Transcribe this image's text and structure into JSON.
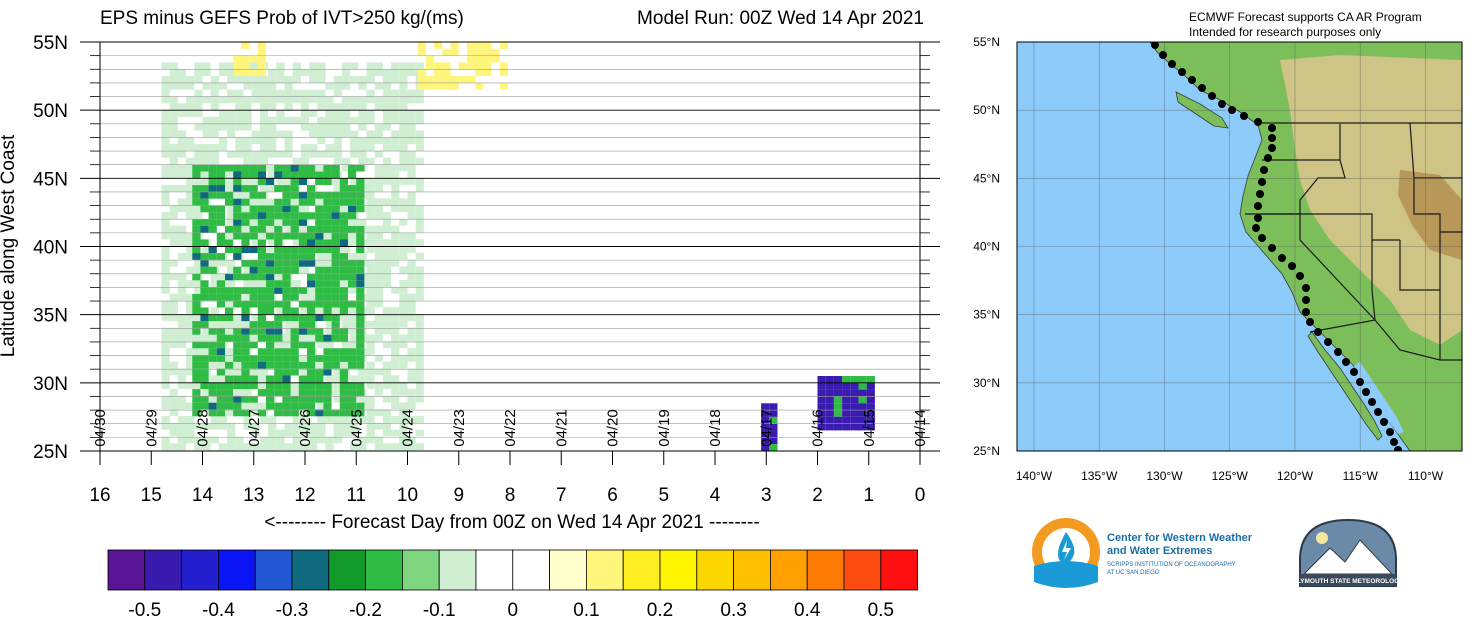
{
  "header": {
    "title": "EPS minus GEFS Prob of IVT>250 kg/(ms)",
    "model_run": "Model Run: 00Z Wed 14 Apr 2021"
  },
  "chart_data": {
    "type": "heatmap",
    "title": "EPS minus GEFS Prob of IVT>250 kg/(ms)",
    "xlabel": "<-------- Forecast Day from 00Z on Wed 14 Apr 2021 --------",
    "ylabel": "Latitude along West Coast",
    "x_axis_reversed": true,
    "xlim": [
      0,
      16
    ],
    "ylim": [
      25,
      55
    ],
    "x_ticks": [
      "16",
      "15",
      "14",
      "13",
      "12",
      "11",
      "10",
      "9",
      "8",
      "7",
      "6",
      "5",
      "4",
      "3",
      "2",
      "1",
      "0"
    ],
    "y_ticks": [
      "25N",
      "30N",
      "35N",
      "40N",
      "45N",
      "50N",
      "55N"
    ],
    "date_labels": [
      "04/30",
      "04/29",
      "04/28",
      "04/27",
      "04/26",
      "04/25",
      "04/24",
      "04/23",
      "04/22",
      "04/21",
      "04/20",
      "04/19",
      "04/18",
      "04/17",
      "04/16",
      "04/15",
      "04/14"
    ],
    "grid": true,
    "regions": [
      {
        "x_from": 9.8,
        "x_to": 14.8,
        "lat_from": 25,
        "lat_to": 53.5,
        "value": -0.1
      },
      {
        "x_from": 11.0,
        "x_to": 14.2,
        "lat_from": 28,
        "lat_to": 46,
        "value": -0.2
      },
      {
        "x_from": 1.0,
        "x_to": 2.0,
        "lat_from": 27,
        "lat_to": 30.5,
        "value": -0.5
      },
      {
        "x_from": 2.8,
        "x_to": 3.1,
        "lat_from": 25,
        "lat_to": 28.5,
        "value": -0.5
      },
      {
        "x_from": 8.2,
        "x_to": 9.8,
        "lat_from": 52,
        "lat_to": 55,
        "value": 0.1
      },
      {
        "x_from": 12.8,
        "x_to": 13.4,
        "lat_from": 53,
        "lat_to": 55,
        "value": 0.1
      }
    ],
    "colorbar": {
      "colors": [
        "#5a1596",
        "#3a1bb0",
        "#241fcf",
        "#0a14f5",
        "#2258d4",
        "#0f6a80",
        "#119a2a",
        "#2ebc44",
        "#7dd67d",
        "#cfeed2",
        "#ffffff",
        "#ffffff",
        "#ffffcc",
        "#fff57a",
        "#ffee22",
        "#fff500",
        "#ffd700",
        "#ffc000",
        "#ff9f00",
        "#ff7a00",
        "#ff4a10",
        "#ff0f0f"
      ],
      "labels": [
        "-0.5",
        "-0.4",
        "-0.3",
        "-0.2",
        "-0.1",
        "0",
        "0.1",
        "0.2",
        "0.3",
        "0.4",
        "0.5"
      ]
    }
  },
  "map": {
    "header_line1": "ECMWF Forecast supports CA AR Program",
    "header_line2": "Intended for research purposes only",
    "lat_labels": [
      "55°N",
      "50°N",
      "45°N",
      "40°N",
      "35°N",
      "30°N",
      "25°N"
    ],
    "lon_labels": [
      "140°W",
      "135°W",
      "130°W",
      "125°W",
      "120°W",
      "115°W",
      "110°W"
    ]
  },
  "logos": {
    "cw3e_line1": "Center for Western Weather",
    "cw3e_line2": "and Water Extremes",
    "cw3e_line3": "SCRIPPS INSTITUTION OF OCEANOGRAPHY",
    "cw3e_line4": "AT UC SAN DIEGO",
    "plymouth": "PLYMOUTH STATE METEOROLOGY"
  },
  "colors": {
    "ocean": "#8ccbfa",
    "land_green": "#7cbf5a",
    "land_tan": "#d6c48a",
    "cw3e_orange": "#f39a21",
    "cw3e_blue": "#1a9ad6"
  }
}
